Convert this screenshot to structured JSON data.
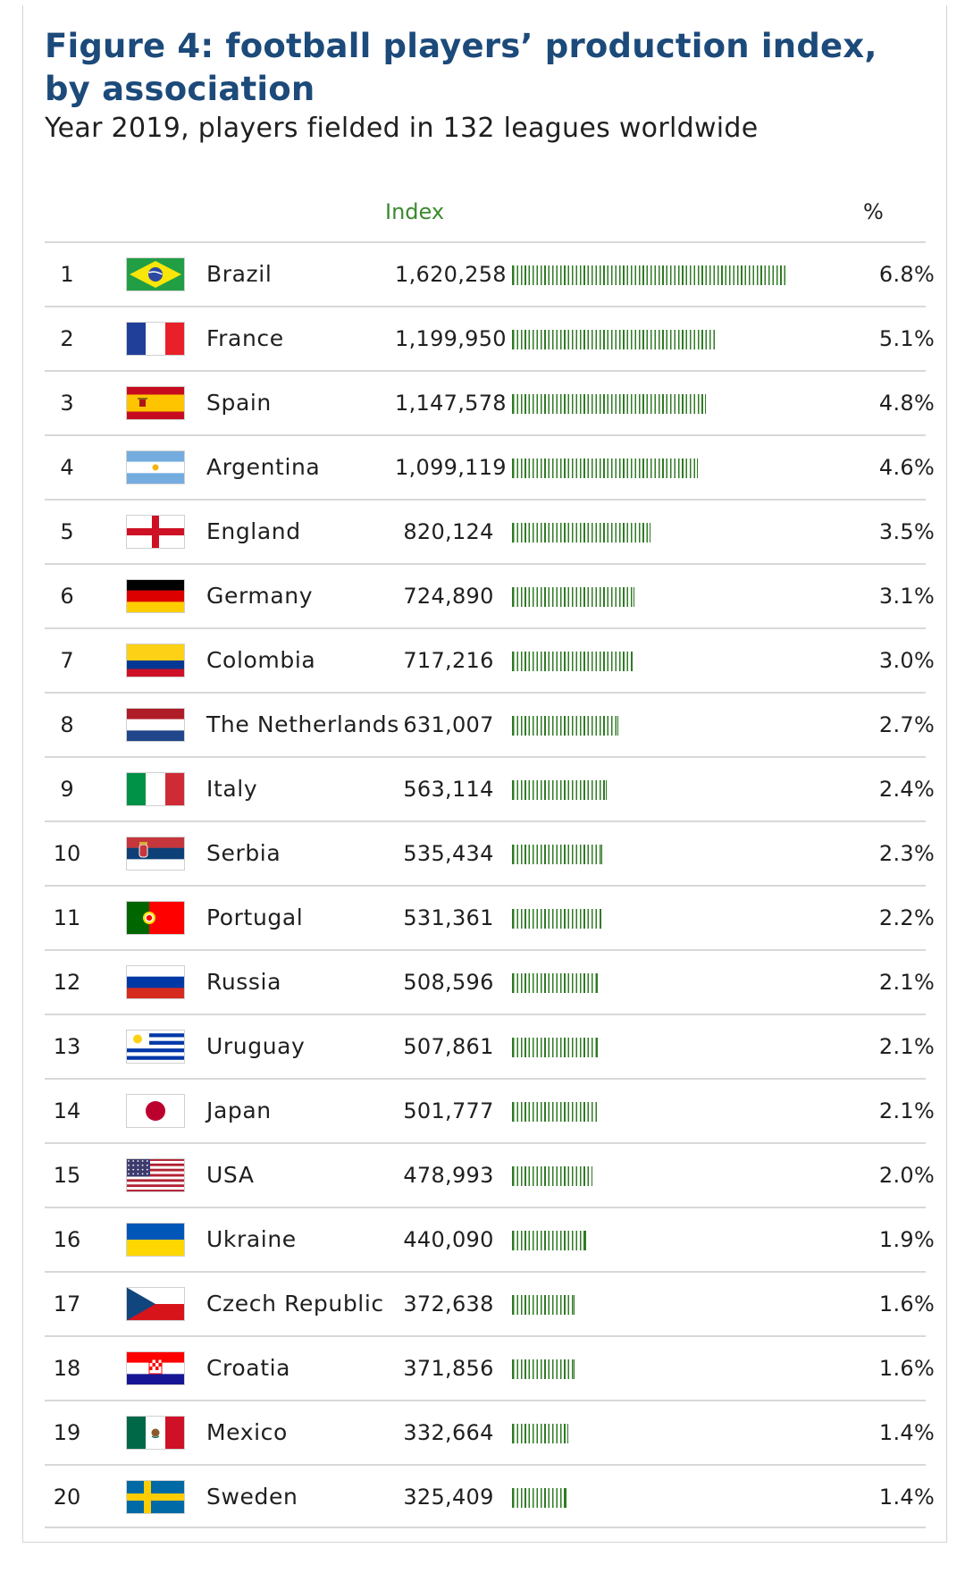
{
  "header": {
    "title": "Figure 4: football players’ production index, by association",
    "subtitle": "Year 2019, players fielded in 132 leagues worldwide"
  },
  "columns": {
    "index_label": "Index",
    "pct_label": "%"
  },
  "chart_data": {
    "type": "bar",
    "title": "Figure 4: football players’ production index, by association",
    "subtitle": "Year 2019, players fielded in 132 leagues worldwide",
    "orientation": "horizontal",
    "value_label": "Index",
    "share_label": "%",
    "xlim": [
      0,
      1620258
    ],
    "rows": [
      {
        "rank": "1",
        "country": "Brazil",
        "value": 1620258,
        "value_label": "1,620,258",
        "pct": "6.8%",
        "flag": "brazil-flag-icon"
      },
      {
        "rank": "2",
        "country": "France",
        "value": 1199950,
        "value_label": "1,199,950",
        "pct": "5.1%",
        "flag": "france-flag-icon"
      },
      {
        "rank": "3",
        "country": "Spain",
        "value": 1147578,
        "value_label": "1,147,578",
        "pct": "4.8%",
        "flag": "spain-flag-icon"
      },
      {
        "rank": "4",
        "country": "Argentina",
        "value": 1099119,
        "value_label": "1,099,119",
        "pct": "4.6%",
        "flag": "argentina-flag-icon"
      },
      {
        "rank": "5",
        "country": "England",
        "value": 820124,
        "value_label": "820,124",
        "pct": "3.5%",
        "flag": "england-flag-icon"
      },
      {
        "rank": "6",
        "country": "Germany",
        "value": 724890,
        "value_label": "724,890",
        "pct": "3.1%",
        "flag": "germany-flag-icon"
      },
      {
        "rank": "7",
        "country": "Colombia",
        "value": 717216,
        "value_label": "717,216",
        "pct": "3.0%",
        "flag": "colombia-flag-icon"
      },
      {
        "rank": "8",
        "country": "The Netherlands",
        "value": 631007,
        "value_label": "631,007",
        "pct": "2.7%",
        "flag": "netherlands-flag-icon"
      },
      {
        "rank": "9",
        "country": "Italy",
        "value": 563114,
        "value_label": "563,114",
        "pct": "2.4%",
        "flag": "italy-flag-icon"
      },
      {
        "rank": "10",
        "country": "Serbia",
        "value": 535434,
        "value_label": "535,434",
        "pct": "2.3%",
        "flag": "serbia-flag-icon"
      },
      {
        "rank": "11",
        "country": "Portugal",
        "value": 531361,
        "value_label": "531,361",
        "pct": "2.2%",
        "flag": "portugal-flag-icon"
      },
      {
        "rank": "12",
        "country": "Russia",
        "value": 508596,
        "value_label": "508,596",
        "pct": "2.1%",
        "flag": "russia-flag-icon"
      },
      {
        "rank": "13",
        "country": "Uruguay",
        "value": 507861,
        "value_label": "507,861",
        "pct": "2.1%",
        "flag": "uruguay-flag-icon"
      },
      {
        "rank": "14",
        "country": "Japan",
        "value": 501777,
        "value_label": "501,777",
        "pct": "2.1%",
        "flag": "japan-flag-icon"
      },
      {
        "rank": "15",
        "country": "USA",
        "value": 478993,
        "value_label": "478,993",
        "pct": "2.0%",
        "flag": "usa-flag-icon"
      },
      {
        "rank": "16",
        "country": "Ukraine",
        "value": 440090,
        "value_label": "440,090",
        "pct": "1.9%",
        "flag": "ukraine-flag-icon"
      },
      {
        "rank": "17",
        "country": "Czech Republic",
        "value": 372638,
        "value_label": "372,638",
        "pct": "1.6%",
        "flag": "czech-flag-icon"
      },
      {
        "rank": "18",
        "country": "Croatia",
        "value": 371856,
        "value_label": "371,856",
        "pct": "1.6%",
        "flag": "croatia-flag-icon"
      },
      {
        "rank": "19",
        "country": "Mexico",
        "value": 332664,
        "value_label": "332,664",
        "pct": "1.4%",
        "flag": "mexico-flag-icon"
      },
      {
        "rank": "20",
        "country": "Sweden",
        "value": 325409,
        "value_label": "325,409",
        "pct": "1.4%",
        "flag": "sweden-flag-icon"
      }
    ]
  },
  "colors": {
    "title": "#1c4a7a",
    "index_header": "#3a8a2e",
    "bar": "#2f7a24",
    "rule": "#d8d8d8"
  }
}
